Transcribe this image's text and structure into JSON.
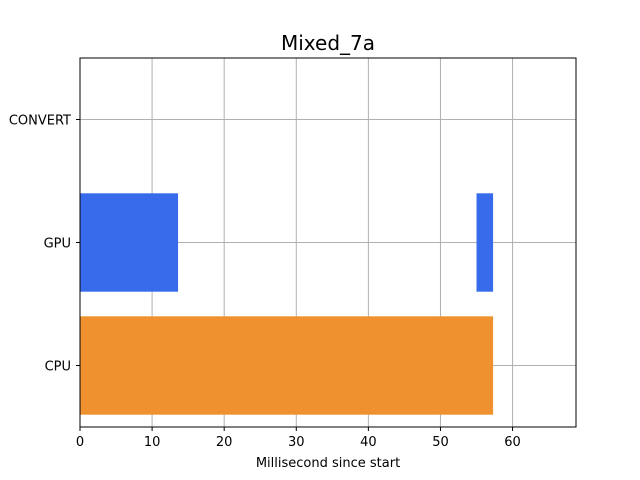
{
  "chart_data": {
    "type": "bar",
    "orientation": "horizontal",
    "title": "Mixed_7a",
    "xlabel": "Millisecond since start",
    "ylabel": "",
    "xlim": [
      0,
      68.8
    ],
    "ylim": [
      -0.5,
      2.5
    ],
    "x_ticks": [
      0,
      10,
      20,
      30,
      40,
      50,
      60
    ],
    "categories": [
      "CPU",
      "GPU",
      "CONVERT"
    ],
    "grid": true,
    "segments": [
      {
        "category": "CPU",
        "start": 0,
        "end": 57.3,
        "color": "#f0912f"
      },
      {
        "category": "GPU",
        "start": 0,
        "end": 13.6,
        "color": "#376bec"
      },
      {
        "category": "GPU",
        "start": 55.0,
        "end": 57.3,
        "color": "#376bec"
      }
    ]
  }
}
